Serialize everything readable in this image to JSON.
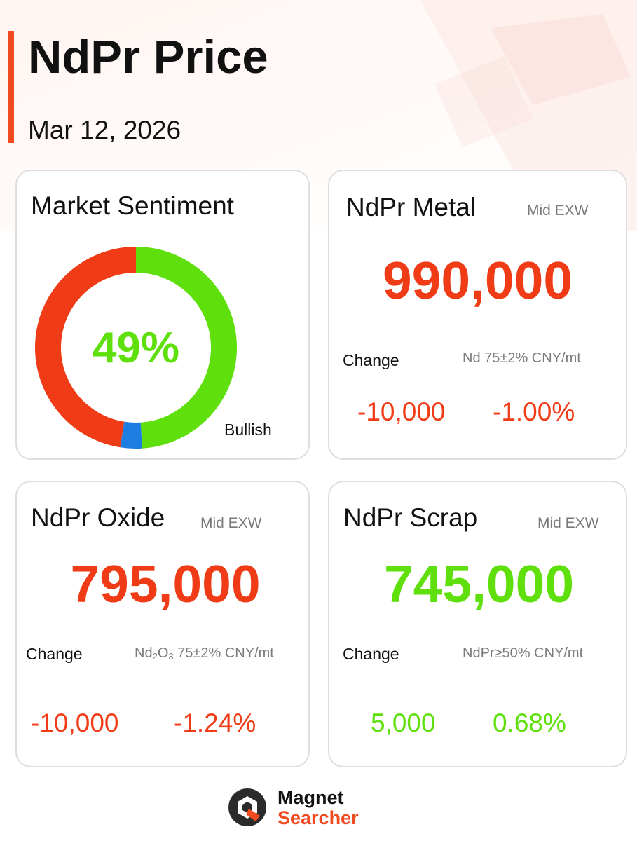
{
  "header": {
    "title": "NdPr Price",
    "date": "Mar 12, 2026"
  },
  "colors": {
    "accent": "#f04a21",
    "down": "#f03c16",
    "up": "#5fe00c",
    "neutral_segment": "#1e7de0",
    "card_border": "#dedede"
  },
  "sentiment": {
    "title": "Market Sentiment",
    "value": "49%",
    "label": "Bullish",
    "chart_data": {
      "type": "pie",
      "segments": [
        {
          "value": 49,
          "color": "#5fe00c"
        },
        {
          "value": 3.5,
          "color": "#1e7de0"
        },
        {
          "value": 47.5,
          "color": "#f03c16"
        }
      ]
    }
  },
  "metal": {
    "title": "NdPr Metal",
    "meta": "Mid  EXW",
    "price": "990,000",
    "change_label": "Change",
    "spec": "Nd 75±2% CNY/mt",
    "change_abs": "-10,000",
    "change_pct": "-1.00%"
  },
  "oxide": {
    "title": "NdPr Oxide",
    "meta": "Mid  EXW",
    "price": "795,000",
    "change_label": "Change",
    "spec_pre": "Nd",
    "spec_sub1": "2",
    "spec_mid": "O",
    "spec_sub2": "3",
    "spec_post": " 75±2% CNY/mt",
    "change_abs": "-10,000",
    "change_pct": "-1.24%"
  },
  "scrap": {
    "title": "NdPr Scrap",
    "meta": "Mid  EXW",
    "price": "745,000",
    "change_label": "Change",
    "spec": "NdPr≥50% CNY/mt",
    "change_abs": "5,000",
    "change_pct": "0.68%"
  },
  "footer": {
    "brand_line1": "Magnet",
    "brand_line2": "Searcher"
  }
}
